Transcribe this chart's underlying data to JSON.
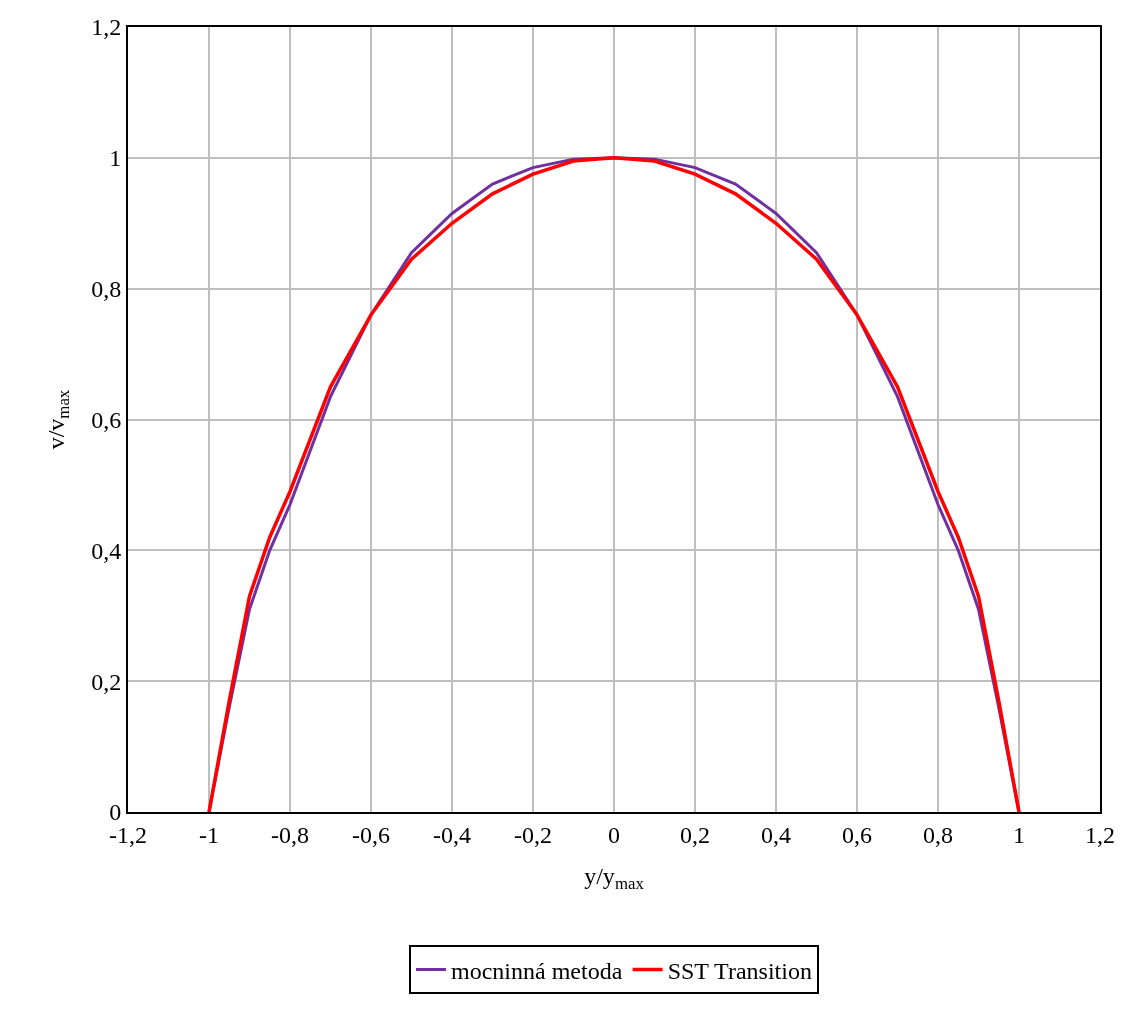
{
  "chart_data": {
    "type": "line",
    "xlabel": "y/y$_{max}$",
    "ylabel": "v/v$_{max}$",
    "x": [
      -1,
      -0.95,
      -0.9,
      -0.85,
      -0.8,
      -0.7,
      -0.6,
      -0.5,
      -0.4,
      -0.3,
      -0.2,
      -0.1,
      0,
      0.1,
      0.2,
      0.3,
      0.4,
      0.5,
      0.6,
      0.7,
      0.8,
      0.85,
      0.9,
      0.95,
      1
    ],
    "series": [
      {
        "name": "mocninná metoda",
        "color": "#7030a0",
        "values": [
          0,
          0.16,
          0.31,
          0.4,
          0.47,
          0.635,
          0.76,
          0.855,
          0.915,
          0.96,
          0.985,
          0.998,
          1,
          0.998,
          0.985,
          0.96,
          0.915,
          0.855,
          0.76,
          0.635,
          0.47,
          0.4,
          0.31,
          0.16,
          0
        ]
      },
      {
        "name": "SST Transition",
        "color": "#ff0000",
        "values": [
          0,
          0.17,
          0.33,
          0.42,
          0.49,
          0.65,
          0.76,
          0.845,
          0.9,
          0.945,
          0.975,
          0.995,
          1,
          0.995,
          0.975,
          0.945,
          0.9,
          0.845,
          0.76,
          0.65,
          0.49,
          0.42,
          0.33,
          0.17,
          0
        ]
      }
    ],
    "xlim": [
      -1.2,
      1.2
    ],
    "xticks": [
      {
        "value": -1.2,
        "label": "-1,2"
      },
      {
        "value": -1,
        "label": "-1"
      },
      {
        "value": -0.8,
        "label": "-0,8"
      },
      {
        "value": -0.6,
        "label": "-0,6"
      },
      {
        "value": -0.4,
        "label": "-0,4"
      },
      {
        "value": -0.2,
        "label": "-0,2"
      },
      0,
      {
        "value": 0.2,
        "label": "0,2"
      },
      {
        "value": 0.4,
        "label": "0,4"
      },
      {
        "value": 0.6,
        "label": "0,6"
      },
      {
        "value": 0.8,
        "label": "0,8"
      },
      1,
      {
        "value": 1.2,
        "label": "1,2"
      }
    ],
    "ylim": [
      0,
      1.2
    ],
    "yticks": [
      0,
      {
        "value": 0.2,
        "label": "0,2"
      },
      {
        "value": 0.4,
        "label": "0,4"
      },
      {
        "value": 0.6,
        "label": "0,6"
      },
      {
        "value": 0.8,
        "label": "0,8"
      },
      1,
      {
        "value": 1.2,
        "label": "1,2"
      }
    ],
    "grid": true,
    "legend": "bottom",
    "marker": "none",
    "line_style": "solid"
  }
}
